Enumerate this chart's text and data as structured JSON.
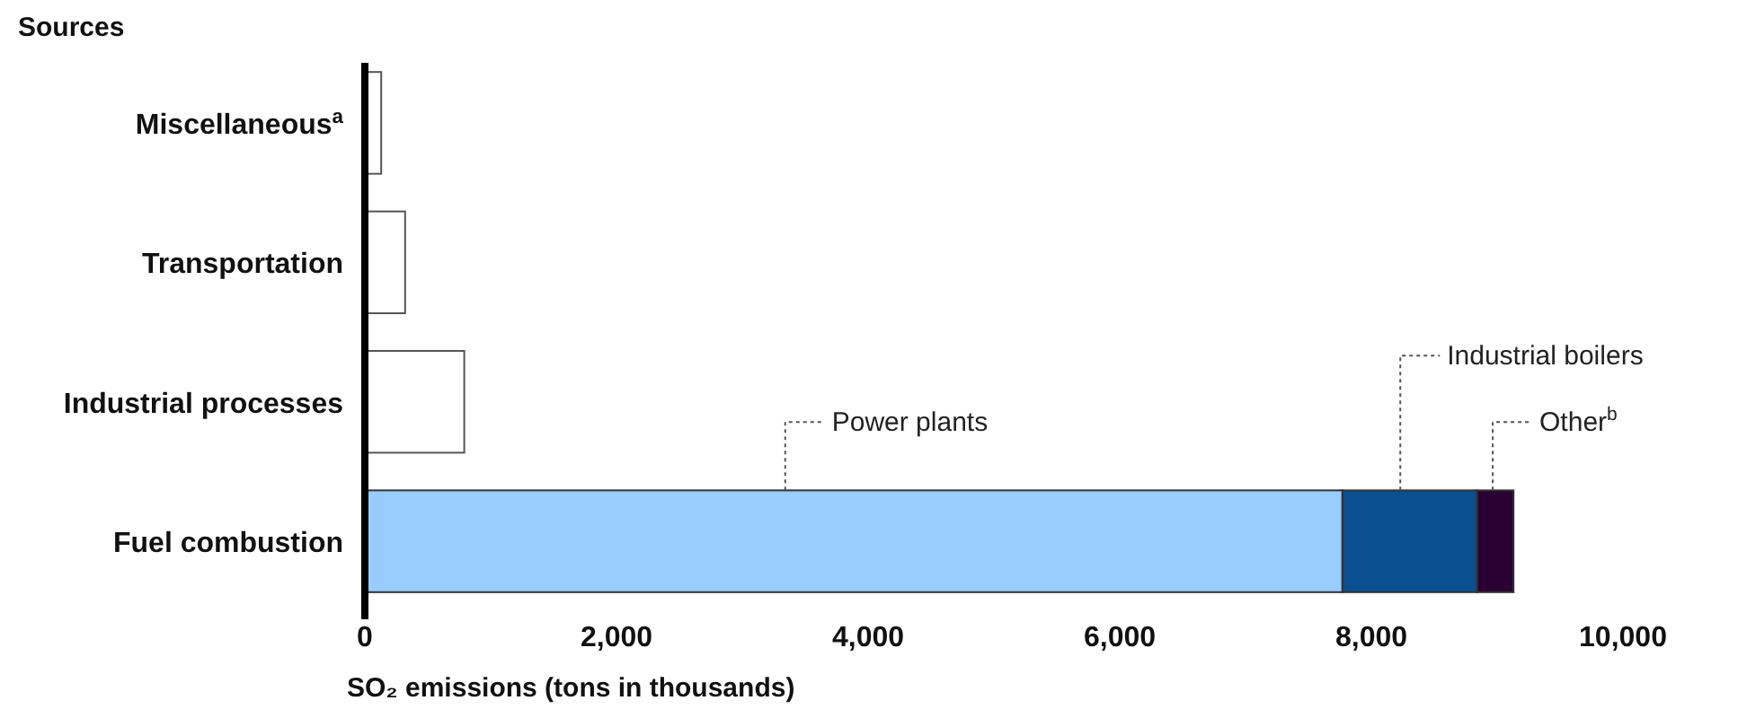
{
  "chart_data": {
    "type": "bar",
    "orientation": "horizontal",
    "stacked": true,
    "ylabel": "Sources",
    "xlabel": "SO₂ emissions (tons in thousands)",
    "categories": [
      "Miscellaneous$^{a}$",
      "Transportation",
      "Industrial processes",
      "Fuel combustion"
    ],
    "series": [
      {
        "color": "#ffffff",
        "values": [
          130,
          320,
          790,
          null
        ]
      },
      {
        "name": "Power plants",
        "color": "#99ccff",
        "values": [
          null,
          null,
          null,
          7770
        ]
      },
      {
        "name": "Industrial boilers",
        "color": "#0a4f8f",
        "values": [
          null,
          null,
          null,
          1070
        ]
      },
      {
        "name": "Other$^{b}$",
        "color": "#2a0033",
        "values": [
          null,
          null,
          null,
          290
        ]
      }
    ],
    "xlim": [
      0,
      10000
    ],
    "xticks": [
      {
        "value": 0,
        "label": "0"
      },
      {
        "value": 2000,
        "label": "2,000"
      },
      {
        "value": 4000,
        "label": "4,000"
      },
      {
        "value": 6000,
        "label": "6,000"
      },
      {
        "value": 8000,
        "label": "8,000"
      },
      {
        "value": 10000,
        "label": "10,000"
      }
    ],
    "grid": false
  }
}
